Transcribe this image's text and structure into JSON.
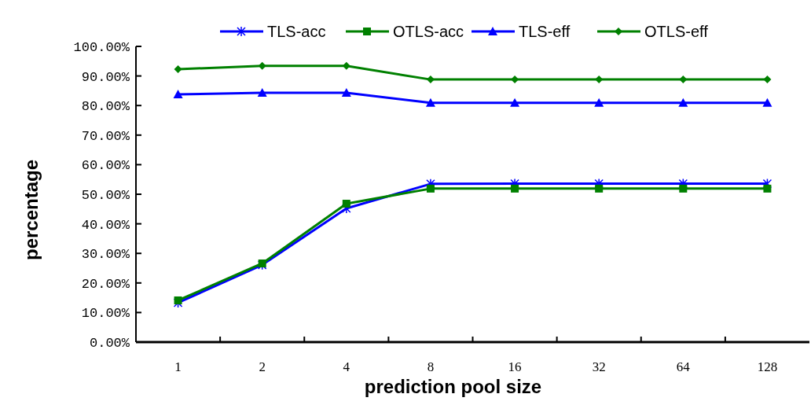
{
  "chart_data": {
    "type": "line",
    "xlabel": "prediction pool size",
    "ylabel": "percentage",
    "categories": [
      "1",
      "2",
      "4",
      "8",
      "16",
      "32",
      "64",
      "128"
    ],
    "ylim": [
      0,
      100
    ],
    "yticks": [
      {
        "value": 0,
        "label": "0.00%"
      },
      {
        "value": 10,
        "label": "10.00%"
      },
      {
        "value": 20,
        "label": "20.00%"
      },
      {
        "value": 30,
        "label": "30.00%"
      },
      {
        "value": 40,
        "label": "40.00%"
      },
      {
        "value": 50,
        "label": "50.00%"
      },
      {
        "value": 60,
        "label": "60.00%"
      },
      {
        "value": 70,
        "label": "70.00%"
      },
      {
        "value": 80,
        "label": "80.00%"
      },
      {
        "value": 90,
        "label": "90.00%"
      },
      {
        "value": 100,
        "label": "100.00%"
      }
    ],
    "grid": false,
    "legend": "top",
    "line_style": "solid",
    "series": [
      {
        "name": "TLS-acc",
        "color": "#0000ff",
        "marker": "cross",
        "values": [
          13.3,
          26.1,
          45.2,
          53.5,
          53.6,
          53.6,
          53.6,
          53.6
        ]
      },
      {
        "name": "OTLS-acc",
        "color": "#008000",
        "marker": "square",
        "values": [
          14.1,
          26.6,
          46.8,
          51.9,
          51.9,
          51.9,
          51.9,
          51.9
        ]
      },
      {
        "name": "TLS-eff",
        "color": "#0000ff",
        "marker": "triangle",
        "values": [
          83.8,
          84.3,
          84.3,
          80.9,
          80.9,
          80.9,
          80.9,
          80.9
        ]
      },
      {
        "name": "OTLS-eff",
        "color": "#008000",
        "marker": "diamond",
        "values": [
          92.3,
          93.4,
          93.4,
          88.8,
          88.8,
          88.8,
          88.8,
          88.8
        ]
      }
    ]
  }
}
